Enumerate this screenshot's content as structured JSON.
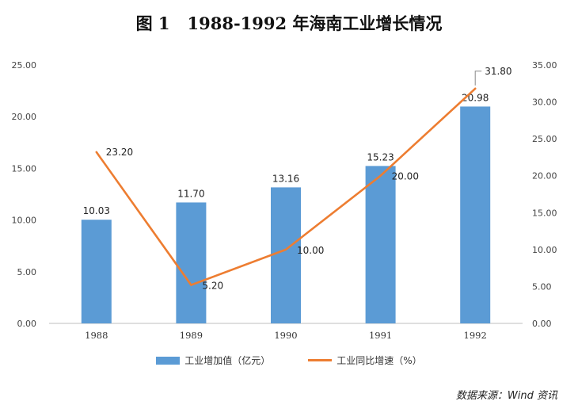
{
  "title": {
    "figure_number": "图 1",
    "text": "1988-1992 年海南工业增长情况"
  },
  "chart_data": {
    "type": "bar",
    "categories": [
      "1988",
      "1989",
      "1990",
      "1991",
      "1992"
    ],
    "series": [
      {
        "name": "工业增加值（亿元）",
        "type": "bar",
        "axis": "left",
        "color": "#5B9BD5",
        "values": [
          10.03,
          11.7,
          13.16,
          15.23,
          20.98
        ],
        "labels": [
          "10.03",
          "11.70",
          "13.16",
          "15.23",
          "20.98"
        ]
      },
      {
        "name": "工业同比增速（%）",
        "type": "line",
        "axis": "right",
        "color": "#ED7D31",
        "values": [
          23.2,
          5.2,
          10.0,
          20.0,
          31.8
        ],
        "labels": [
          "23.20",
          "5.20",
          "10.00",
          "20.00",
          "31.80"
        ]
      }
    ],
    "left_axis": {
      "min": 0,
      "max": 25,
      "step": 5,
      "ticks": [
        "0.00",
        "5.00",
        "10.00",
        "15.00",
        "20.00",
        "25.00"
      ]
    },
    "right_axis": {
      "min": 0,
      "max": 35,
      "step": 5,
      "ticks": [
        "0.00",
        "5.00",
        "10.00",
        "15.00",
        "20.00",
        "25.00",
        "30.00",
        "35.00"
      ]
    },
    "legend_position": "bottom",
    "grid": false
  },
  "legend": {
    "bar_label": "工业增加值（亿元）",
    "line_label": "工业同比增速（%）"
  },
  "source": "数据来源：Wind 资讯"
}
